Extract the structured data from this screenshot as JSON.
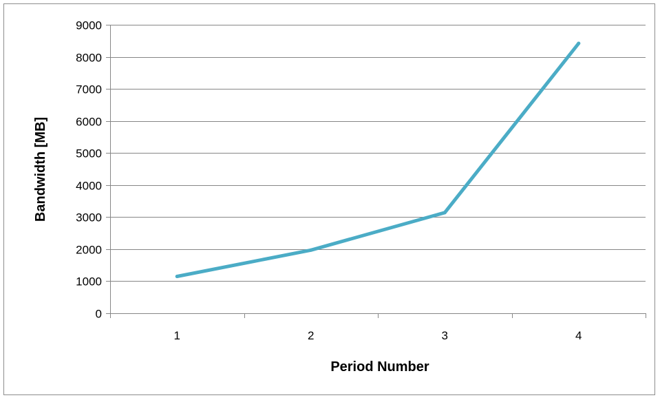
{
  "chart_data": {
    "type": "line",
    "title": "",
    "xlabel": "Period Number",
    "ylabel": "Bandwidth [MB]",
    "categories": [
      "1",
      "2",
      "3",
      "4"
    ],
    "series": [
      {
        "values": [
          1150,
          1970,
          3140,
          8420
        ]
      }
    ],
    "ylim": [
      0,
      9000
    ],
    "yticks": [
      "0",
      "1000",
      "2000",
      "3000",
      "4000",
      "5000",
      "6000",
      "7000",
      "8000",
      "9000"
    ],
    "grid": true,
    "legend": "none",
    "colors": {
      "line": "#4bacc6",
      "grid": "#868686",
      "axis": "#868686"
    }
  }
}
